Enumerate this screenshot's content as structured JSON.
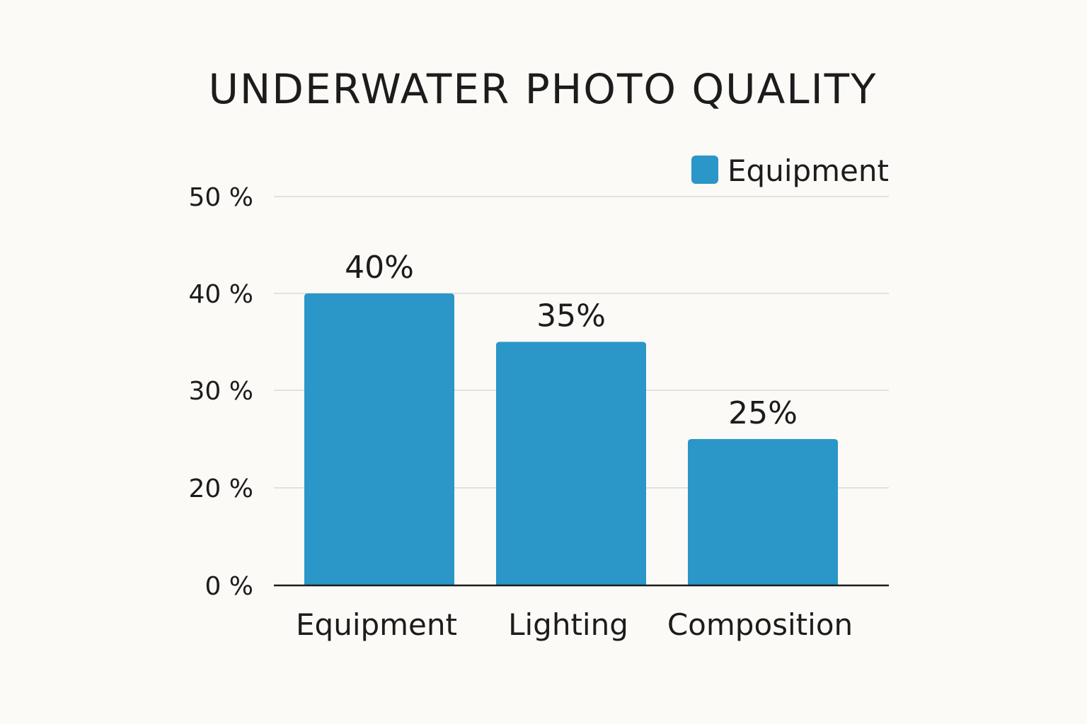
{
  "chart_data": {
    "type": "bar",
    "title": "UNDERWATER PHOTO QUALITY",
    "xlabel": "",
    "ylabel": "",
    "categories": [
      "Equipment",
      "Lighting",
      "Composition"
    ],
    "series": [
      {
        "name": "Equipment",
        "values": [
          40,
          35,
          25
        ],
        "data_labels": [
          "40%",
          "35%",
          "25%"
        ],
        "color": "#2b96c8"
      }
    ],
    "yticks": [
      0,
      20,
      30,
      40,
      50
    ],
    "ytick_labels": [
      "0 %",
      "20 %",
      "30 %",
      "40 %",
      "50 %"
    ],
    "ylim": [
      0,
      50
    ],
    "grid": true,
    "legend": "top-right"
  }
}
